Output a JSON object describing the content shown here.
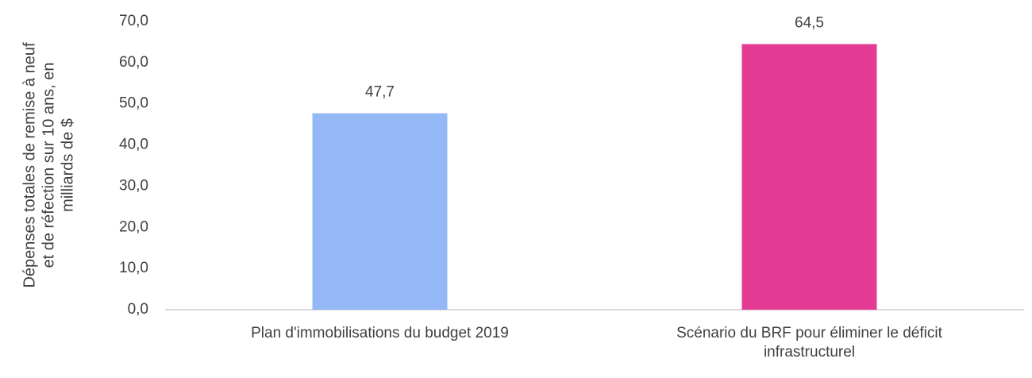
{
  "chart_data": {
    "type": "bar",
    "ylabel": [
      "Dépenses totales de remise à neuf",
      "et de réfection sur 10 ans, en",
      "milliards de $"
    ],
    "categories": [
      "Plan d'immobilisations du budget 2019",
      "Scénario du BRF pour éliminer le déficit infrastructurel"
    ],
    "values": [
      47.7,
      64.5
    ],
    "value_labels": [
      "47,7",
      "64,5"
    ],
    "colors": [
      "#94b8f5",
      "#e33b94"
    ],
    "ylim": [
      0,
      70
    ],
    "yticks": [
      {
        "value": 0,
        "label": "0,0"
      },
      {
        "value": 10,
        "label": "10,0"
      },
      {
        "value": 20,
        "label": "20,0"
      },
      {
        "value": 30,
        "label": "30,0"
      },
      {
        "value": 40,
        "label": "40,0"
      },
      {
        "value": 50,
        "label": "50,0"
      },
      {
        "value": 60,
        "label": "60,0"
      },
      {
        "value": 70,
        "label": "70,0"
      }
    ],
    "grid": false
  }
}
